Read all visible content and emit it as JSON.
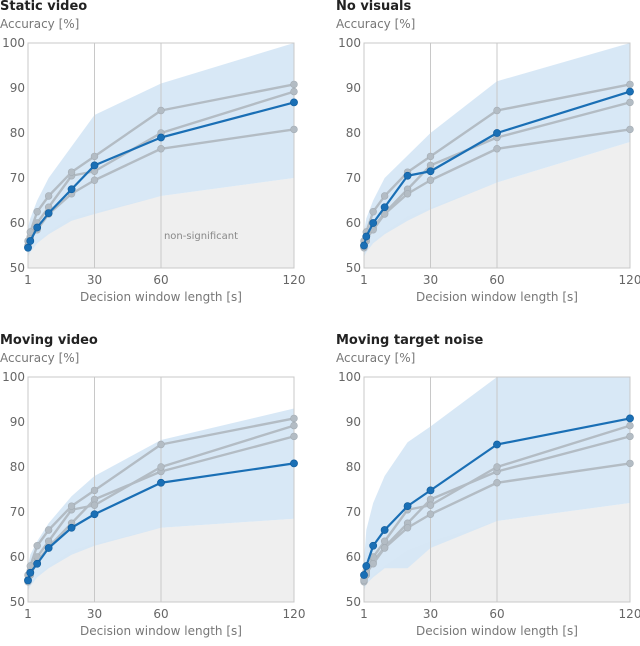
{
  "figure": {
    "colors": {
      "highlight": "#1a6fb5",
      "gray_line": "#b3bcc4",
      "ci_band": "#d4e6f5",
      "nonsig_band": "#efefef",
      "frame": "#c8c8c8"
    }
  },
  "chart_data": [
    {
      "type": "line",
      "title": "Static video",
      "ylabel": "Accuracy [%]",
      "xlabel": "Decision window length [s]",
      "x": [
        1,
        2,
        5,
        10,
        20,
        30,
        60,
        120
      ],
      "x_ticks": [
        1,
        30,
        60,
        120
      ],
      "y_ticks": [
        50,
        60,
        70,
        80,
        90,
        100
      ],
      "ylim": [
        50,
        100
      ],
      "annotation": "non-significant",
      "nonsig_upper": [
        53.5,
        54.5,
        56,
        58,
        61.5,
        62.5,
        66,
        70
      ],
      "band": {
        "low": [
          52.5,
          53.5,
          55.5,
          57.5,
          60.5,
          62,
          66,
          70
        ],
        "high": [
          59,
          61,
          65,
          70,
          77,
          84,
          91,
          100
        ]
      },
      "series": [
        {
          "name": "Static video",
          "highlight": true,
          "values": [
            54.5,
            56,
            59,
            62.2,
            67.5,
            72.8,
            79,
            86.8
          ]
        },
        {
          "name": "No visuals",
          "highlight": false,
          "values": [
            55,
            57,
            60,
            63.5,
            70.5,
            71.5,
            80,
            89.2
          ]
        },
        {
          "name": "Moving video",
          "highlight": false,
          "values": [
            54.8,
            56.5,
            58.5,
            62,
            66.5,
            69.5,
            76.5,
            80.8
          ]
        },
        {
          "name": "Moving target noise",
          "highlight": false,
          "values": [
            56,
            58,
            62.5,
            66,
            71.3,
            74.8,
            85,
            90.8
          ]
        }
      ]
    },
    {
      "type": "line",
      "title": "No visuals",
      "ylabel": "Accuracy [%]",
      "xlabel": "Decision window length [s]",
      "x": [
        1,
        2,
        5,
        10,
        20,
        30,
        60,
        120
      ],
      "x_ticks": [
        1,
        30,
        60,
        120
      ],
      "y_ticks": [
        50,
        60,
        70,
        80,
        90,
        100
      ],
      "ylim": [
        50,
        100
      ],
      "annotation": "",
      "nonsig_upper": [
        53.5,
        54.5,
        56,
        58,
        61.5,
        63.5,
        69,
        78
      ],
      "band": {
        "low": [
          52.5,
          53.5,
          55.5,
          57.5,
          60.5,
          63,
          69,
          78
        ],
        "high": [
          58,
          61,
          65,
          70,
          75,
          80,
          91.5,
          100
        ]
      },
      "series": [
        {
          "name": "No visuals",
          "highlight": true,
          "values": [
            55,
            57,
            60,
            63.5,
            70.5,
            71.5,
            80,
            89.2
          ]
        },
        {
          "name": "Static video",
          "highlight": false,
          "values": [
            54.5,
            56,
            59,
            62.2,
            67.5,
            72.8,
            79,
            86.8
          ]
        },
        {
          "name": "Moving video",
          "highlight": false,
          "values": [
            54.8,
            56.5,
            58.5,
            62,
            66.5,
            69.5,
            76.5,
            80.8
          ]
        },
        {
          "name": "Moving target noise",
          "highlight": false,
          "values": [
            56,
            58,
            62.5,
            66,
            71.3,
            74.8,
            85,
            90.8
          ]
        }
      ]
    },
    {
      "type": "line",
      "title": "Moving video",
      "ylabel": "Accuracy [%]",
      "xlabel": "Decision window length [s]",
      "x": [
        1,
        2,
        5,
        10,
        20,
        30,
        60,
        120
      ],
      "x_ticks": [
        1,
        30,
        60,
        120
      ],
      "y_ticks": [
        50,
        60,
        70,
        80,
        90,
        100
      ],
      "ylim": [
        50,
        100
      ],
      "annotation": "",
      "nonsig_upper": [
        53.5,
        54.5,
        56,
        58,
        61.5,
        63,
        66.5,
        68.5
      ],
      "band": {
        "low": [
          52.5,
          53.5,
          55.5,
          57.5,
          60.5,
          62.5,
          66.5,
          68.5
        ],
        "high": [
          58,
          60.5,
          63.5,
          67.5,
          73.5,
          78,
          86,
          93
        ]
      },
      "series": [
        {
          "name": "Moving video",
          "highlight": true,
          "values": [
            54.8,
            56.5,
            58.5,
            62,
            66.5,
            69.5,
            76.5,
            80.8
          ]
        },
        {
          "name": "Static video",
          "highlight": false,
          "values": [
            54.5,
            56,
            59,
            62.2,
            67.5,
            72.8,
            79,
            86.8
          ]
        },
        {
          "name": "No visuals",
          "highlight": false,
          "values": [
            55,
            57,
            60,
            63.5,
            70.5,
            71.5,
            80,
            89.2
          ]
        },
        {
          "name": "Moving target noise",
          "highlight": false,
          "values": [
            56,
            58,
            62.5,
            66,
            71.3,
            74.8,
            85,
            90.8
          ]
        }
      ]
    },
    {
      "type": "line",
      "title": "Moving target noise",
      "ylabel": "Accuracy [%]",
      "xlabel": "Decision window length [s]",
      "x": [
        1,
        2,
        5,
        10,
        20,
        30,
        60,
        120
      ],
      "x_ticks": [
        1,
        30,
        60,
        120
      ],
      "y_ticks": [
        50,
        60,
        70,
        80,
        90,
        100
      ],
      "ylim": [
        50,
        100
      ],
      "annotation": "",
      "nonsig_upper": [
        53.5,
        54.5,
        56,
        58,
        61.5,
        63.5,
        68,
        72
      ],
      "band": {
        "low": [
          52.5,
          54,
          55.5,
          57.5,
          57.5,
          62,
          68,
          72
        ],
        "high": [
          59,
          66,
          72,
          78,
          85.5,
          89,
          100,
          100
        ]
      },
      "series": [
        {
          "name": "Moving target noise",
          "highlight": true,
          "values": [
            56,
            58,
            62.5,
            66,
            71.3,
            74.8,
            85,
            90.8
          ]
        },
        {
          "name": "Static video",
          "highlight": false,
          "values": [
            54.5,
            56,
            59,
            62.2,
            67.5,
            72.8,
            79,
            86.8
          ]
        },
        {
          "name": "No visuals",
          "highlight": false,
          "values": [
            55,
            57,
            60,
            63.5,
            70.5,
            71.5,
            80,
            89.2
          ]
        },
        {
          "name": "Moving video",
          "highlight": false,
          "values": [
            54.8,
            56.5,
            58.5,
            62,
            66.5,
            69.5,
            76.5,
            80.8
          ]
        }
      ]
    }
  ]
}
